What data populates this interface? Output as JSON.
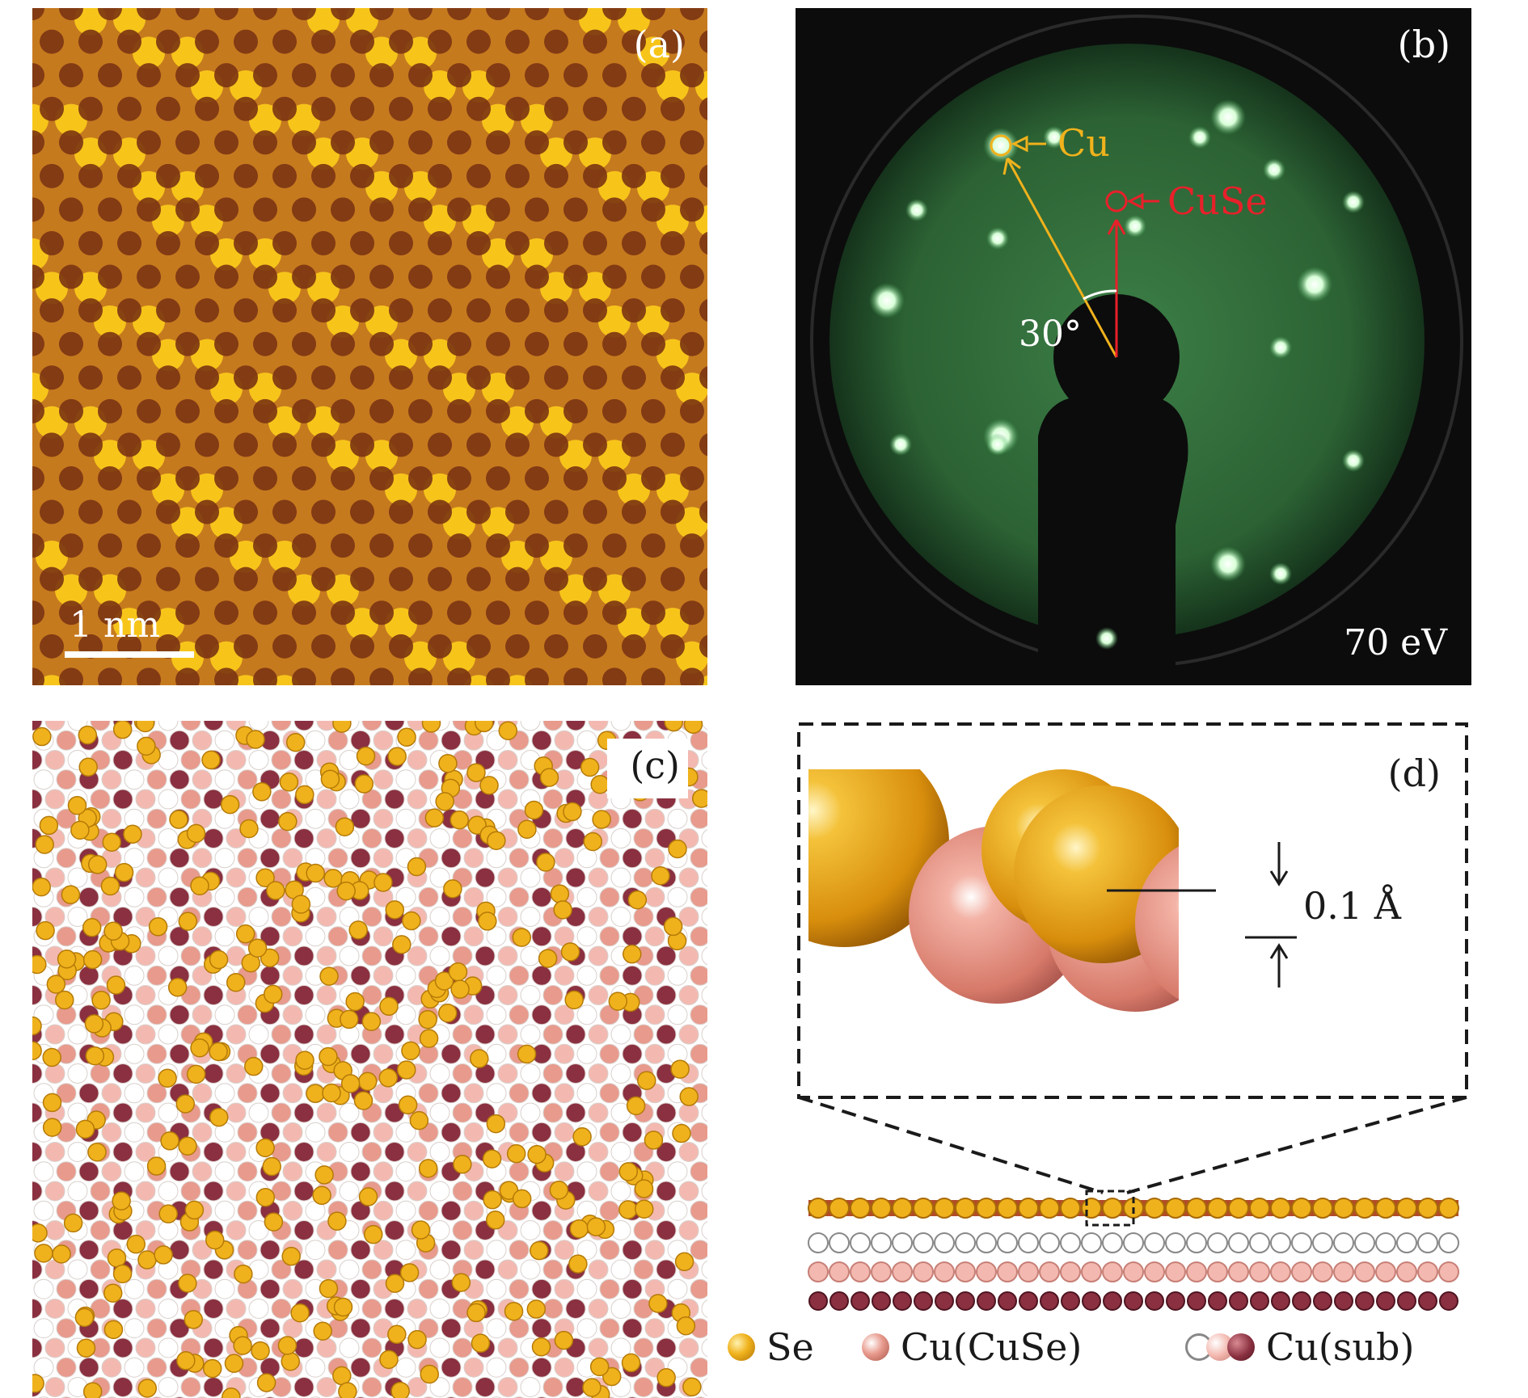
{
  "panels": {
    "a": {
      "label": "(a)",
      "scale_bar": "1 nm"
    },
    "b": {
      "label": "(b)",
      "cu_label": "Cu",
      "cuse_label": "CuSe",
      "angle": "30°",
      "energy": "70 eV"
    },
    "c": {
      "label": "(c)"
    },
    "d": {
      "label": "(d)",
      "height_label": "0.1 Å"
    }
  },
  "legend": [
    {
      "label": "Se",
      "color": "#f0b21c"
    },
    {
      "label": "Cu(CuSe)",
      "color": "#e89a8c"
    },
    {
      "label": "Cu(sub)",
      "colors": [
        "#ffffff",
        "#f3b9b0",
        "#8a3040"
      ]
    }
  ],
  "colors": {
    "stm_dark": "#7a3412",
    "stm_mid": "#c67a1e",
    "stm_bright": "#ffd21a",
    "leed_green": "#2e6e3a",
    "cu_marker": "#f0b21c",
    "cuse_marker": "#e8202a",
    "se_atom": "#f0b21c",
    "cu_cuse_atom": "#e89a8c",
    "cu_sub_dark": "#8a3040",
    "cu_sub_light": "#f3b9b0"
  }
}
